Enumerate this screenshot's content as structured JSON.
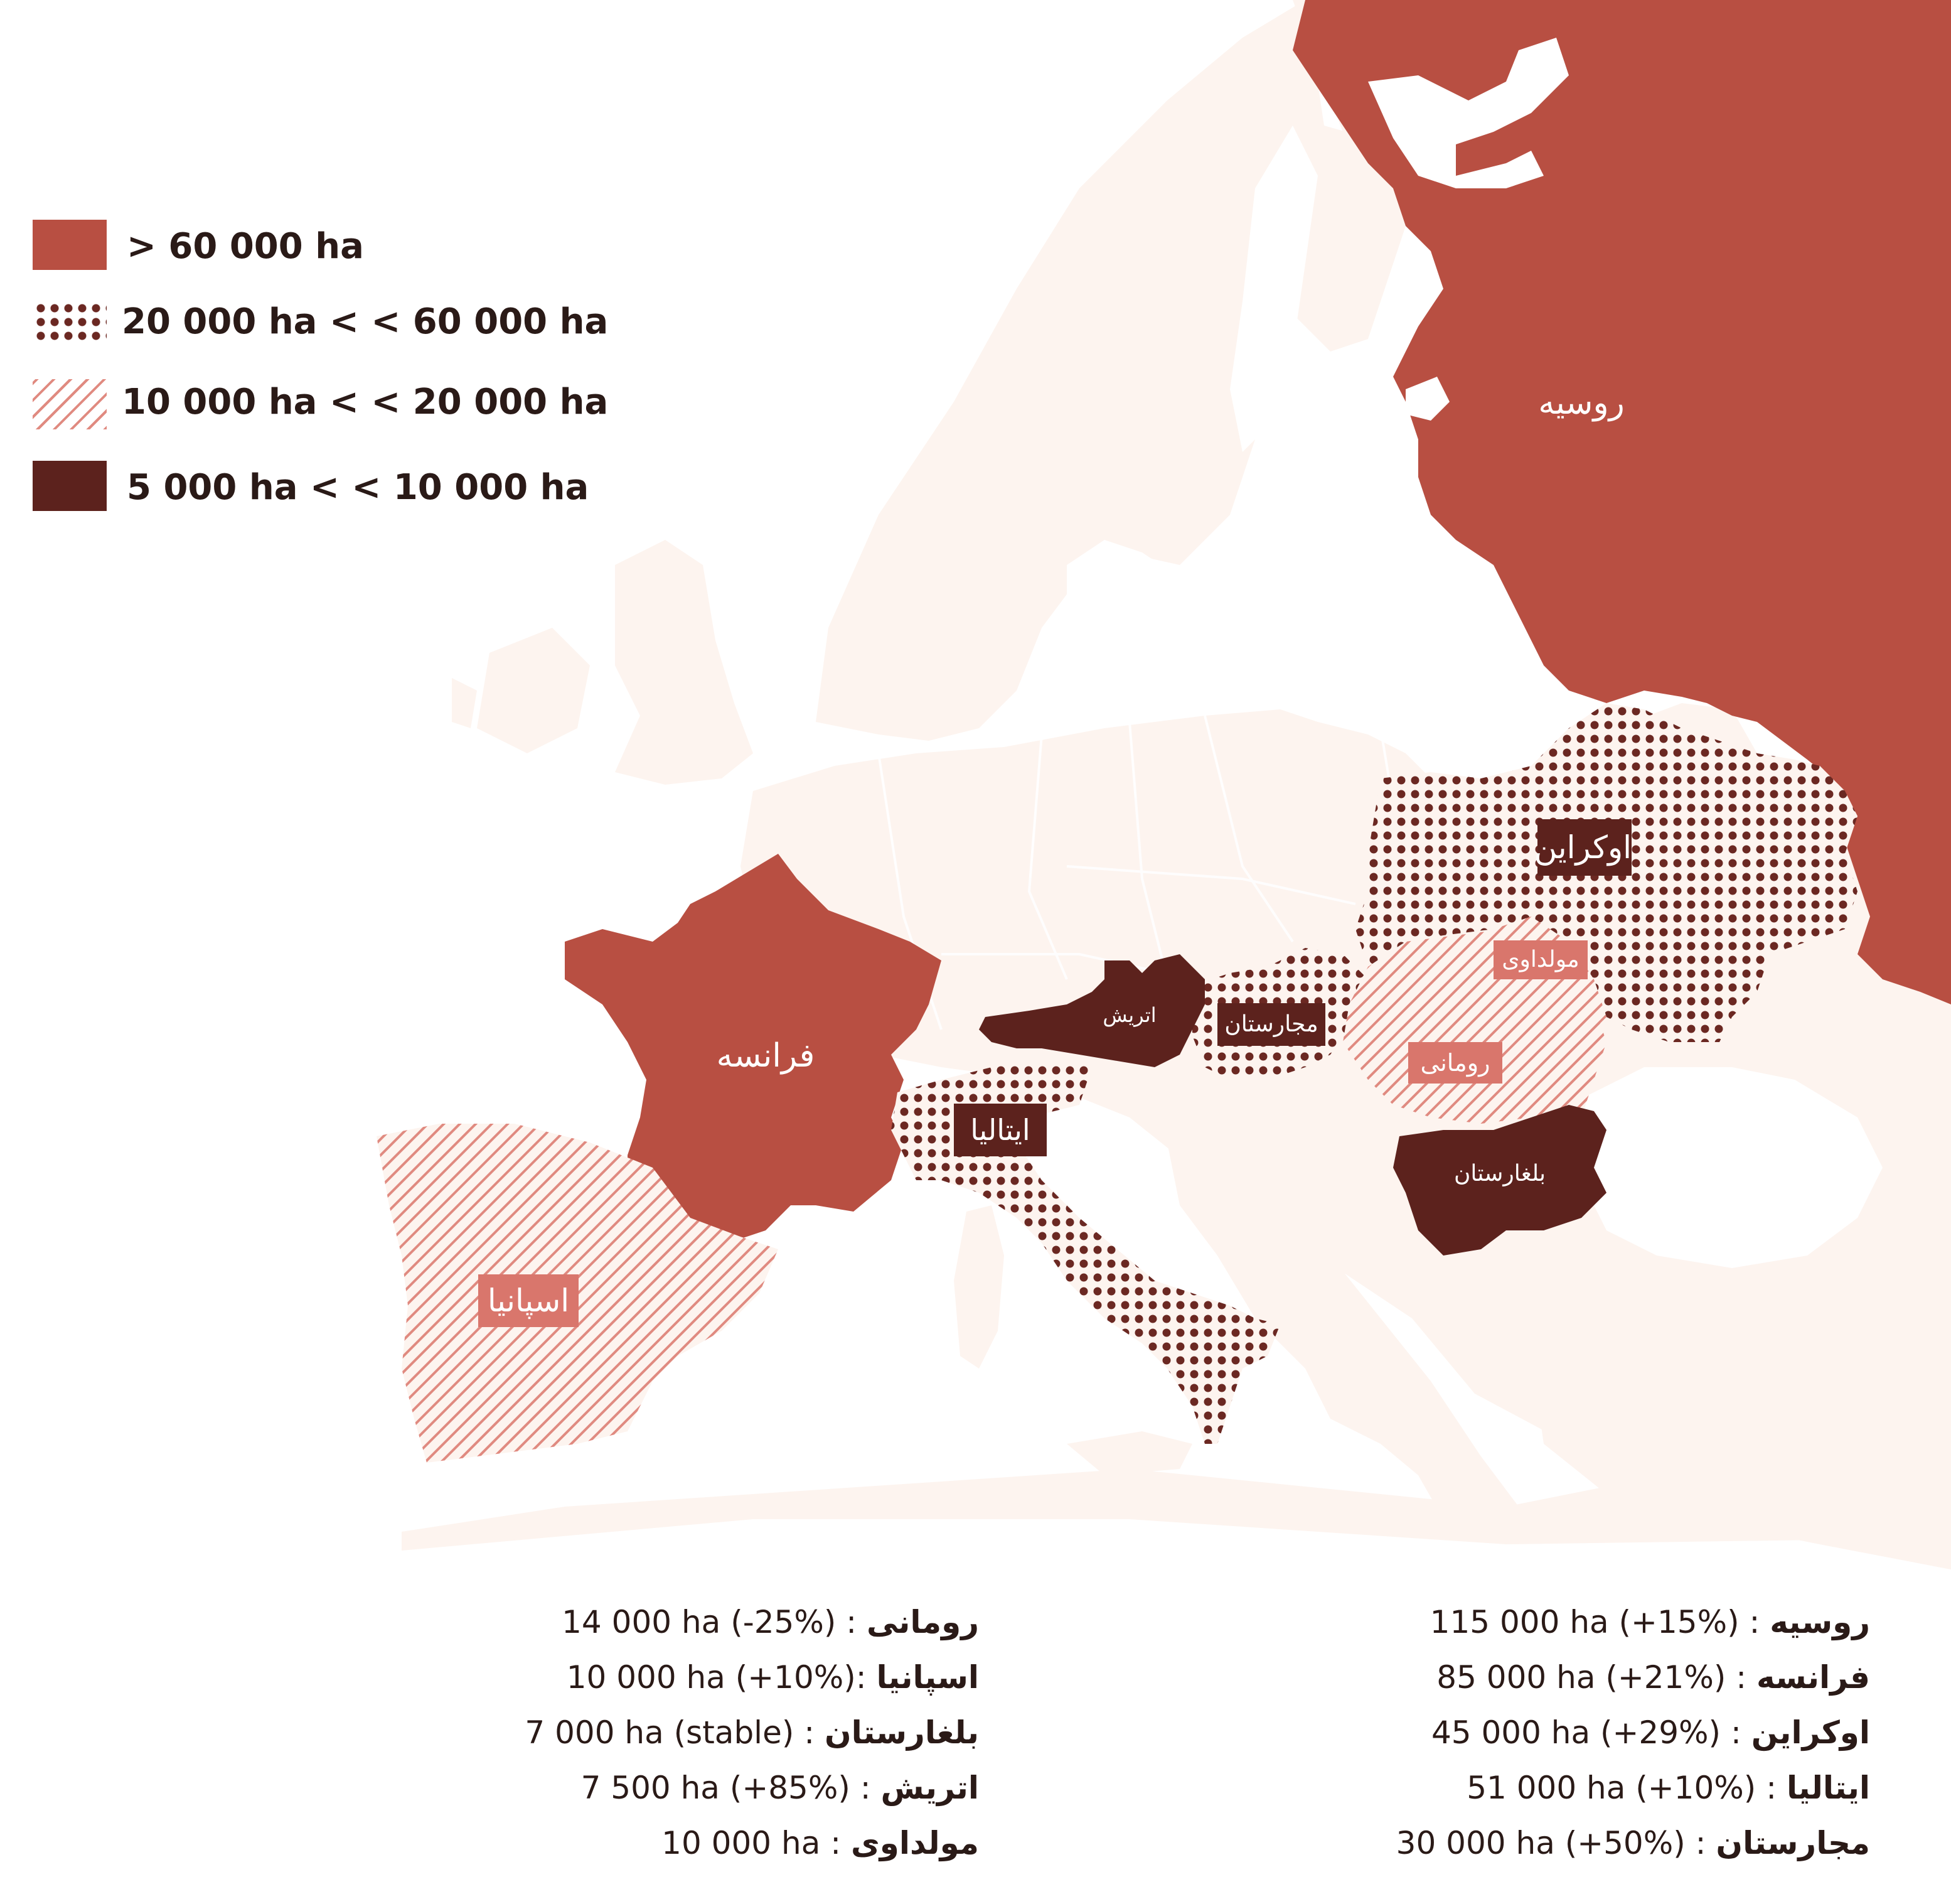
{
  "colors": {
    "land": "#fdf4ef",
    "high": "#b84f42",
    "dots": "#6b2822",
    "hatch": "#e08a80",
    "dark": "#5c221d",
    "pink_label": "#d9766c"
  },
  "legend": [
    {
      "pattern": "solid-red",
      "label": "> 60 000 ha"
    },
    {
      "pattern": "dots",
      "label": "20 000 ha < < 60 000 ha"
    },
    {
      "pattern": "hatch",
      "label": "10 000 ha < < 20 000 ha"
    },
    {
      "pattern": "solid-dark",
      "label": "5 000 ha < < 10 000 ha"
    }
  ],
  "map_labels": {
    "russia": "روسیه",
    "france": "فرانسه",
    "ukraine": "اوکراین",
    "moldova": "مولداوی",
    "hungary": "مجارستان",
    "austria": "اتریش",
    "romania": "رومانی",
    "italy": "ایتالیا",
    "bulgaria": "بلغارستان",
    "spain": "اسپانیا"
  },
  "stats_right": [
    {
      "name": "روسیه",
      "sep": " : ",
      "value": "115 000 ha (+15%)"
    },
    {
      "name": "فرانسه",
      "sep": " : ",
      "value": "85 000 ha (+21%)"
    },
    {
      "name": "اوکراین",
      "sep": " : ",
      "value": "45 000 ha (+29%)"
    },
    {
      "name": "ایتالیا",
      "sep": " : ",
      "value": "51 000 ha (+10%)"
    },
    {
      "name": "مجارستان",
      "sep": " : ",
      "value": "30 000 ha (+50%)"
    }
  ],
  "stats_left": [
    {
      "name": "رومانی",
      "sep": " : ",
      "value": "14 000 ha (-25%)"
    },
    {
      "name": "اسپانیا",
      "sep": " :",
      "value": "10 000 ha (+10%)"
    },
    {
      "name": "بلغارستان",
      "sep": " : ",
      "value": "7 000 ha (stable)"
    },
    {
      "name": "اتریش",
      "sep": " :  ",
      "value": "7 500 ha (+85%)"
    },
    {
      "name": "مولداوی",
      "sep": " : ",
      "value": "10 000 ha"
    }
  ]
}
